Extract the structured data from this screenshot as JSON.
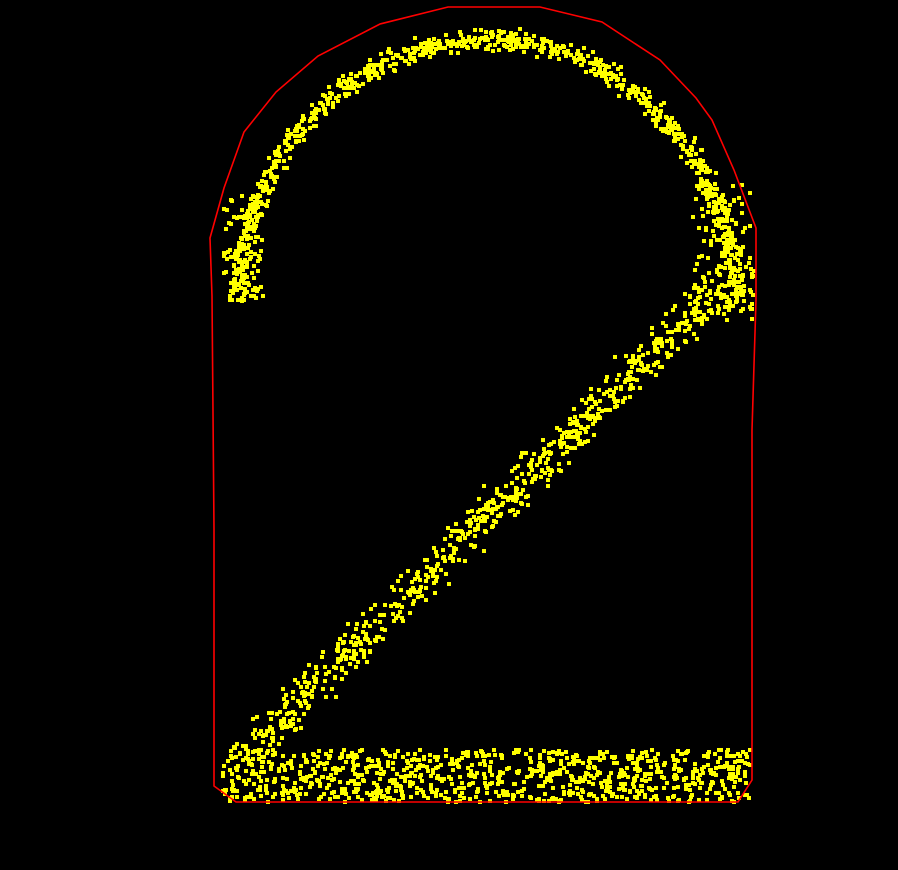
{
  "colors": {
    "background": "#000000",
    "hull": "#ff0000",
    "points": "#ffff00"
  },
  "figure": {
    "type": "point-cloud-with-convex-hull",
    "glyph": "digit-2"
  }
}
